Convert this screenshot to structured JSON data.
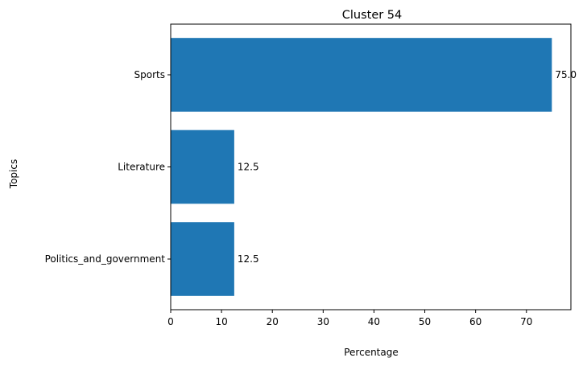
{
  "chart_data": {
    "type": "bar",
    "orientation": "horizontal",
    "title": "Cluster 54",
    "xlabel": "Percentage",
    "ylabel": "Topics",
    "categories": [
      "Sports",
      "Literature",
      "Politics_and_government"
    ],
    "values": [
      75.0,
      12.5,
      12.5
    ],
    "value_labels": [
      "75.0",
      "12.5",
      "12.5"
    ],
    "xlim": [
      0,
      78.75
    ],
    "xticks": [
      0,
      10,
      20,
      30,
      40,
      50,
      60,
      70
    ],
    "bar_color": "#1f77b4",
    "grid": false,
    "legend": "none"
  }
}
